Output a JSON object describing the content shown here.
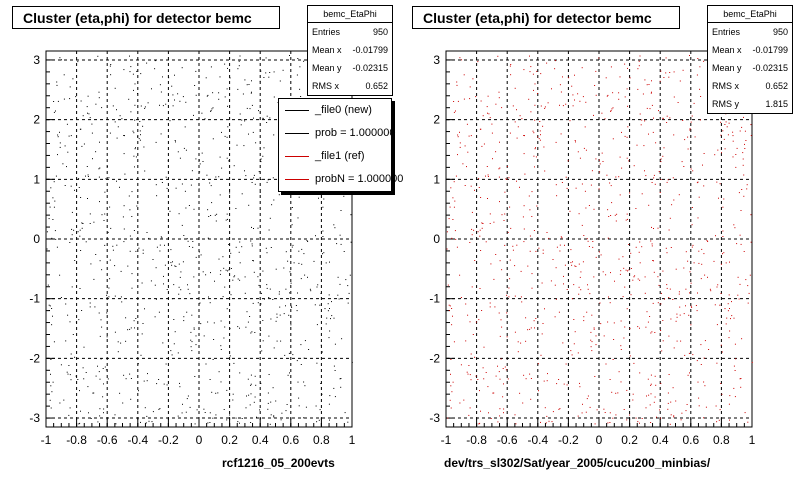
{
  "chart_data": [
    {
      "type": "scatter",
      "title": "Cluster (eta,phi) for detector bemc",
      "xlabel": "rcf1216_05_200evts",
      "ylabel": "",
      "xlim": [
        -1,
        1
      ],
      "ylim": [
        -3.15,
        3.15
      ],
      "xticks": [
        "-1",
        "-0.8",
        "-0.6",
        "-0.4",
        "-0.2",
        "0",
        "0.2",
        "0.4",
        "0.6",
        "0.8",
        "1"
      ],
      "yticks": [
        "-3",
        "-2",
        "-1",
        "0",
        "1",
        "2",
        "3"
      ],
      "grid": true,
      "marker_color": "#000000",
      "stats": {
        "name": "bemc_EtaPhi",
        "rows": [
          {
            "label": "Entries",
            "value": "950"
          },
          {
            "label": "Mean x",
            "value": "-0.01799"
          },
          {
            "label": "Mean y",
            "value": "-0.02315"
          },
          {
            "label": "RMS x",
            "value": "0.652"
          }
        ]
      },
      "legend": {
        "placement": "top-right",
        "entries": [
          {
            "label": "_file0 (new)",
            "color": "#000000"
          },
          {
            "label": "prob = 1.000000",
            "color": "#000000"
          },
          {
            "label": "_file1 (ref)",
            "color": "#cc0000"
          },
          {
            "label": "probN = 1.000000",
            "color": "#cc0000"
          }
        ]
      }
    },
    {
      "type": "scatter",
      "title": "Cluster (eta,phi) for detector bemc",
      "xlabel": "dev/trs_sl302/Sat/year_2005/cucu200_minbias/",
      "ylabel": "",
      "xlim": [
        -1,
        1
      ],
      "ylim": [
        -3.15,
        3.15
      ],
      "xticks": [
        "-1",
        "-0.8",
        "-0.6",
        "-0.4",
        "-0.2",
        "0",
        "0.2",
        "0.4",
        "0.6",
        "0.8",
        "1"
      ],
      "yticks": [
        "-3",
        "-2",
        "-1",
        "0",
        "1",
        "2",
        "3"
      ],
      "grid": true,
      "marker_color": "#cc0000",
      "stats": {
        "name": "bemc_EtaPhi",
        "rows": [
          {
            "label": "Entries",
            "value": "950"
          },
          {
            "label": "Mean x",
            "value": "-0.01799"
          },
          {
            "label": "Mean y",
            "value": "-0.02315"
          },
          {
            "label": "RMS x",
            "value": "0.652"
          },
          {
            "label": "RMS y",
            "value": "1.815"
          }
        ]
      }
    }
  ]
}
